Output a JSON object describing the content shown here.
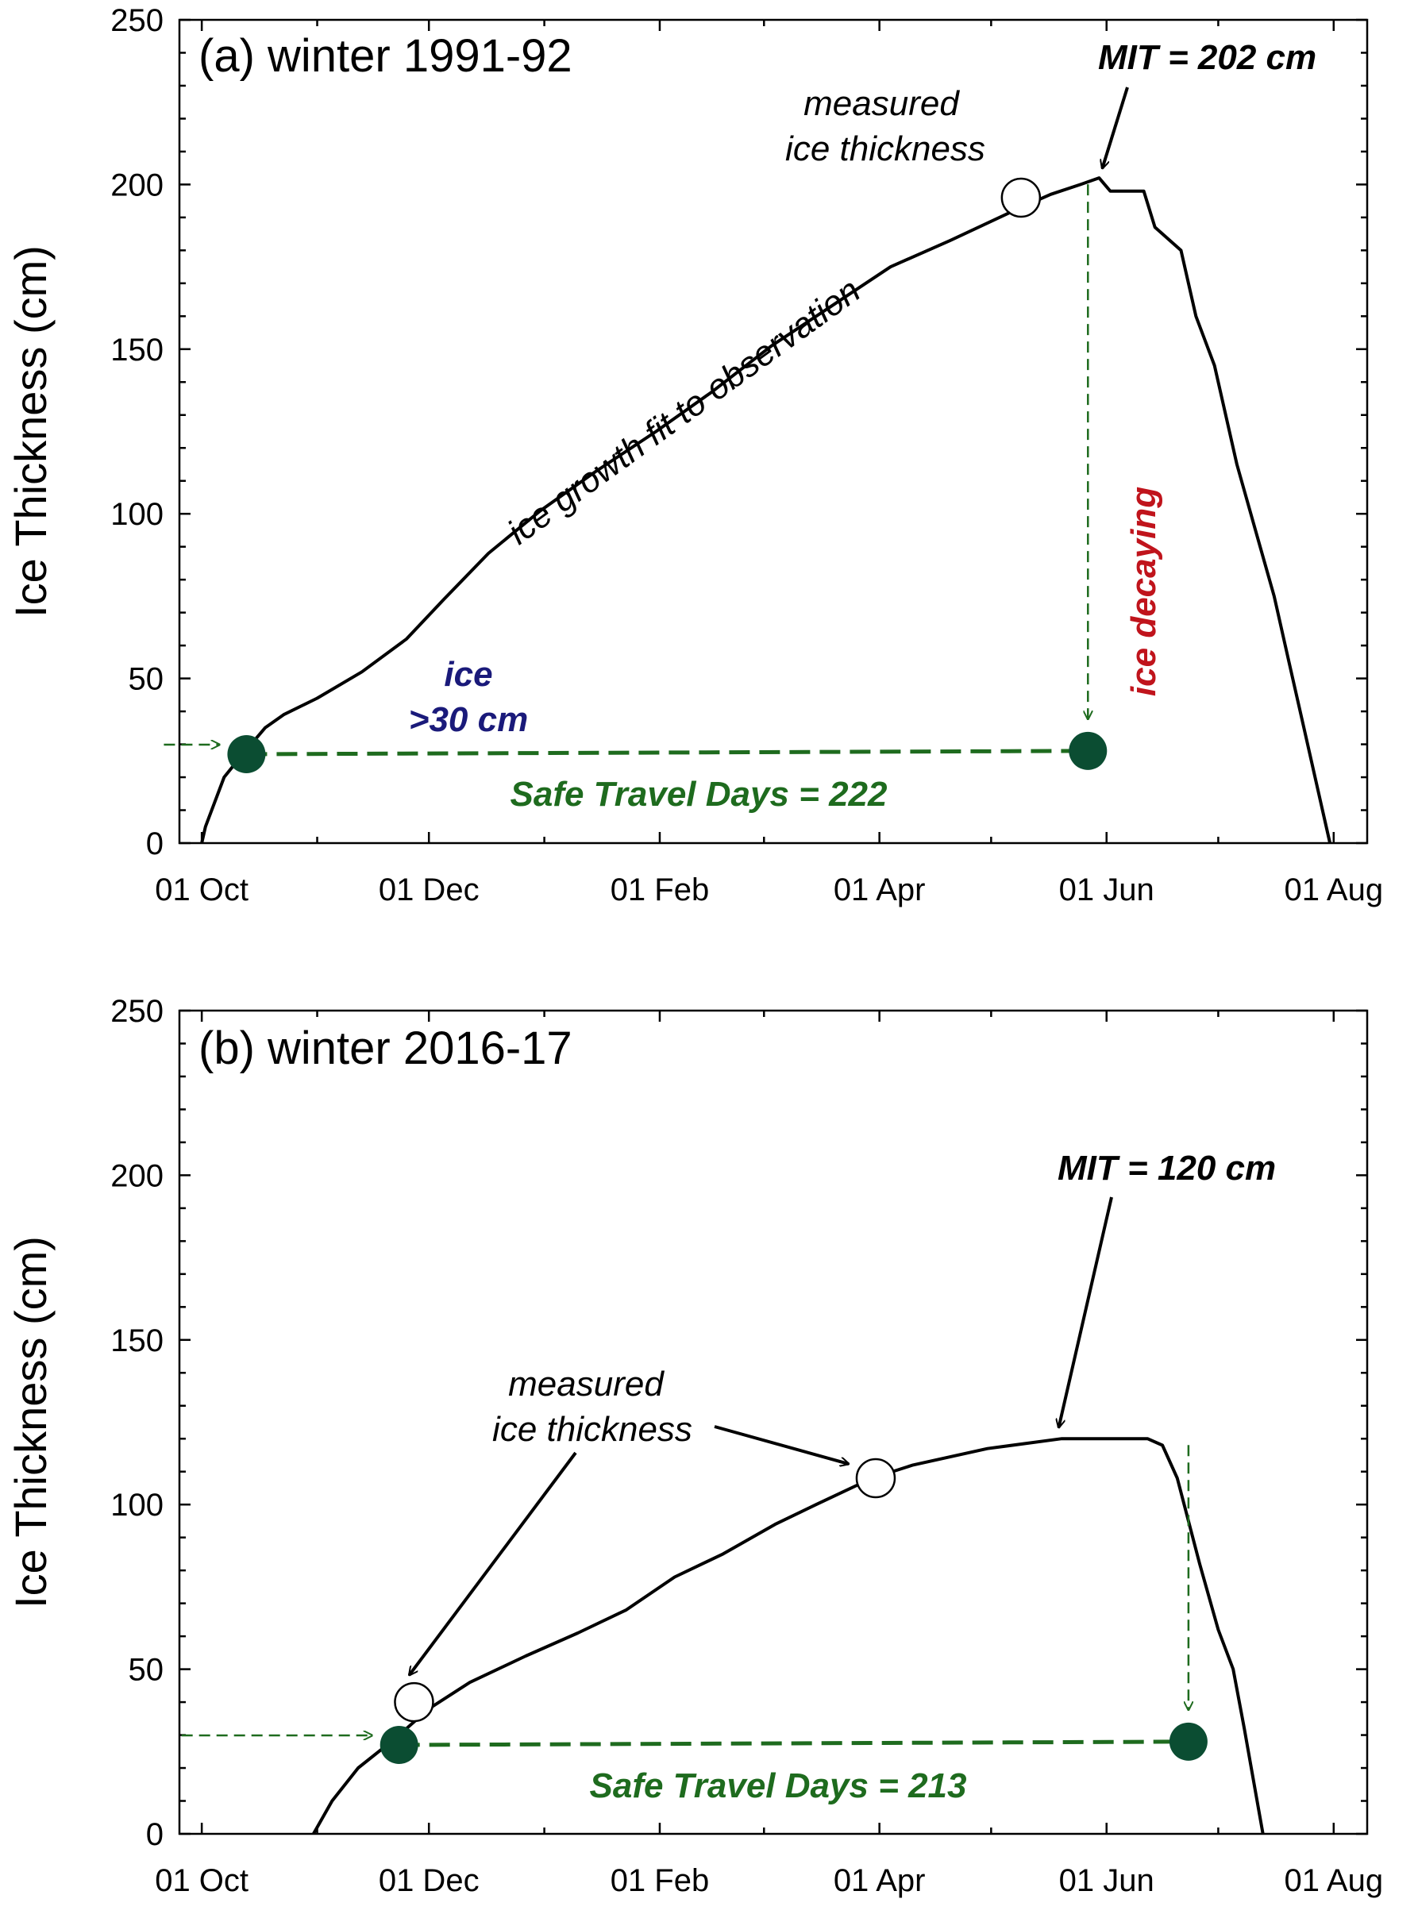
{
  "figure": {
    "y_axis_label": "Ice Thickness (cm)",
    "x_tick_labels": [
      "01 Oct",
      "01 Dec",
      "01 Feb",
      "01 Apr",
      "01 Jun",
      "01 Aug"
    ],
    "y_tick_labels": [
      "0",
      "50",
      "100",
      "150",
      "200",
      "250"
    ]
  },
  "colors": {
    "curve": "#000000",
    "safe_travel": "#1e6b1e",
    "point_fill": "#0b4d32",
    "ice_label": "#1a1a7a",
    "decay_label": "#c0141c"
  },
  "chart_data": [
    {
      "type": "line",
      "panel_title": "(a) winter 1991-92",
      "ylabel": "Ice Thickness (cm)",
      "xlim": [
        "2000-09-25",
        "2001-08-10"
      ],
      "ylim": [
        0,
        250
      ],
      "xticks": [
        "2000-10-01",
        "2000-12-01",
        "2001-02-01",
        "2001-04-01",
        "2001-06-01",
        "2001-08-01"
      ],
      "xtick_labels": [
        "01 Oct",
        "01 Dec",
        "01 Feb",
        "01 Apr",
        "01 Jun",
        "01 Aug"
      ],
      "yticks": [
        0,
        50,
        100,
        150,
        200,
        250
      ],
      "series": [
        {
          "points": [
            [
              "2000-10-01",
              0
            ],
            [
              "2000-10-02",
              5
            ],
            [
              "2000-10-07",
              20
            ],
            [
              "2000-10-12",
              27
            ],
            [
              "2000-10-18",
              35
            ],
            [
              "2000-10-23",
              39
            ],
            [
              "2000-11-01",
              44
            ],
            [
              "2000-11-13",
              52
            ],
            [
              "2000-11-25",
              62
            ],
            [
              "2000-12-05",
              74
            ],
            [
              "2000-12-17",
              88
            ],
            [
              "2000-12-31",
              101
            ],
            [
              "2001-01-15",
              113
            ],
            [
              "2001-01-31",
              125
            ],
            [
              "2001-02-15",
              137
            ],
            [
              "2001-03-03",
              151
            ],
            [
              "2001-03-19",
              163
            ],
            [
              "2001-04-04",
              175
            ],
            [
              "2001-04-20",
              183
            ],
            [
              "2001-05-07",
              192
            ],
            [
              "2001-05-17",
              197
            ],
            [
              "2001-05-25",
              200
            ],
            [
              "2001-05-30",
              202
            ],
            [
              "2001-06-02",
              198
            ],
            [
              "2001-06-11",
              198
            ],
            [
              "2001-06-14",
              187
            ],
            [
              "2001-06-21",
              180
            ],
            [
              "2001-06-25",
              160
            ],
            [
              "2001-06-30",
              145
            ],
            [
              "2001-07-06",
              115
            ],
            [
              "2001-07-11",
              95
            ],
            [
              "2001-07-16",
              75
            ],
            [
              "2001-07-20",
              55
            ],
            [
              "2001-07-24",
              35
            ],
            [
              "2001-07-29",
              10
            ],
            [
              "2001-07-31",
              0
            ]
          ]
        }
      ],
      "measured_points": [
        [
          "2001-05-09",
          196
        ]
      ],
      "safe_travel_points": [
        [
          "2000-10-13",
          27
        ],
        [
          "2001-05-27",
          28
        ]
      ],
      "annotations": {
        "mit": "MIT = 202 cm",
        "measured_line1": "measured",
        "measured_line2": "ice thickness",
        "growth": "ice growth fit to observation",
        "ice_line1": "ice",
        "ice_line2": ">30 cm",
        "decaying": "ice decaying",
        "safe_travel": "Safe Travel Days = 222"
      }
    },
    {
      "type": "line",
      "panel_title": "(b) winter 2016-17",
      "ylabel": "Ice Thickness (cm)",
      "xlim": [
        "2000-09-25",
        "2001-08-10"
      ],
      "ylim": [
        0,
        250
      ],
      "xticks": [
        "2000-10-01",
        "2000-12-01",
        "2001-02-01",
        "2001-04-01",
        "2001-06-01",
        "2001-08-01"
      ],
      "xtick_labels": [
        "01 Oct",
        "01 Dec",
        "01 Feb",
        "01 Apr",
        "01 Jun",
        "01 Aug"
      ],
      "yticks": [
        0,
        50,
        100,
        150,
        200,
        250
      ],
      "series": [
        {
          "points": [
            [
              "2000-10-31",
              0
            ],
            [
              "2000-11-05",
              10
            ],
            [
              "2000-11-12",
              20
            ],
            [
              "2000-11-22",
              29
            ],
            [
              "2000-12-01",
              38
            ],
            [
              "2000-12-12",
              46
            ],
            [
              "2000-12-27",
              54
            ],
            [
              "2001-01-10",
              61
            ],
            [
              "2001-01-23",
              68
            ],
            [
              "2001-02-05",
              78
            ],
            [
              "2001-02-18",
              85
            ],
            [
              "2001-03-04",
              94
            ],
            [
              "2001-03-15",
              100
            ],
            [
              "2001-03-30",
              108
            ],
            [
              "2001-04-10",
              112
            ],
            [
              "2001-04-30",
              117
            ],
            [
              "2001-05-20",
              120
            ],
            [
              "2001-06-12",
              120
            ],
            [
              "2001-06-16",
              118
            ],
            [
              "2001-06-20",
              108
            ],
            [
              "2001-06-26",
              82
            ],
            [
              "2001-07-01",
              62
            ],
            [
              "2001-07-05",
              50
            ],
            [
              "2001-07-08",
              32
            ],
            [
              "2001-07-13",
              0
            ]
          ]
        }
      ],
      "measured_points": [
        [
          "2000-11-27",
          40
        ],
        [
          "2001-03-31",
          108
        ]
      ],
      "safe_travel_points": [
        [
          "2000-11-23",
          27
        ],
        [
          "2001-06-23",
          28
        ]
      ],
      "annotations": {
        "mit": "MIT = 120 cm",
        "measured_line1": "measured",
        "measured_line2": "ice thickness",
        "safe_travel": "Safe Travel Days = 213"
      }
    }
  ]
}
